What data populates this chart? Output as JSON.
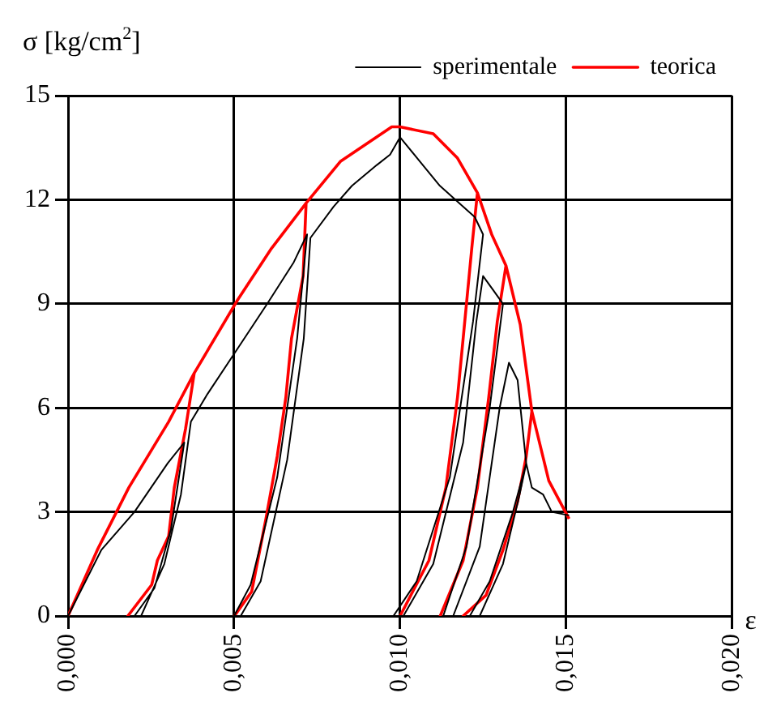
{
  "chart_data": {
    "type": "line",
    "ylabel": "σ [kg/cm$^{2}$]",
    "xlabel": "ε",
    "xlim": [
      0,
      0.02
    ],
    "xticks": [
      {
        "value": 0,
        "label": "0,000"
      },
      {
        "value": 0.005,
        "label": "0,005"
      },
      {
        "value": 0.01,
        "label": "0,010"
      },
      {
        "value": 0.015,
        "label": "0,015"
      },
      {
        "value": 0.02,
        "label": "0,020"
      }
    ],
    "ylim": [
      0,
      15
    ],
    "yticks": [
      0,
      3,
      6,
      9,
      12,
      15
    ],
    "grid": true,
    "legend": "top right",
    "marker": "none",
    "line_style": "solid",
    "series": [
      {
        "name": "sperimentale",
        "color": "#000000",
        "x": [
          0,
          0.001,
          0.002,
          0.003,
          0.0035,
          0.0031,
          0.0026,
          0.002,
          0.0022,
          0.0029,
          0.0034,
          0.0037,
          0.0042,
          0.0051,
          0.006,
          0.0068,
          0.0072,
          0.0069,
          0.0063,
          0.0055,
          0.005,
          0.0052,
          0.0058,
          0.0066,
          0.0071,
          0.0073,
          0.008,
          0.00855,
          0.0093,
          0.0097,
          0.01,
          0.0106,
          0.0112,
          0.01225,
          0.0125,
          0.0122,
          0.0115,
          0.0105,
          0.0098,
          0.0101,
          0.011,
          0.0119,
          0.0123,
          0.0125,
          0.0128,
          0.0131,
          0.0127,
          0.012,
          0.0113,
          0.0116,
          0.0124,
          0.013,
          0.01328,
          0.01354,
          0.0138,
          0.0134,
          0.0127,
          0.0121,
          0.0124,
          0.0131,
          0.0136,
          0.0138,
          0.01397,
          0.01431,
          0.01457,
          0.01509
        ],
        "values": [
          0,
          1.9,
          3.0,
          4.4,
          5.0,
          2.5,
          0.8,
          0,
          0,
          1.5,
          3.5,
          5.6,
          6.4,
          7.7,
          9.0,
          10.2,
          11.0,
          8.0,
          4.0,
          0.9,
          0,
          0,
          1.0,
          4.5,
          8.0,
          10.9,
          11.8,
          12.4,
          13.0,
          13.3,
          13.8,
          13.1,
          12.4,
          11.5,
          11.0,
          8.5,
          4.0,
          1.0,
          0,
          0,
          1.5,
          5.0,
          8.5,
          9.8,
          9.4,
          9.0,
          6.0,
          2.0,
          0,
          0,
          2.0,
          6.0,
          7.3,
          6.8,
          4.4,
          3.0,
          1.0,
          0,
          0,
          1.5,
          3.5,
          4.4,
          3.7,
          3.5,
          3.0,
          2.9
        ]
      },
      {
        "name": "teorica",
        "color": "#ff0000",
        "x": [
          0,
          0.00088,
          0.00183,
          0.00303,
          0.0038,
          0.00354,
          0.0032,
          0.00303,
          0.00269,
          0.00252,
          0.0018,
          0.00252,
          0.00269,
          0.00303,
          0.0032,
          0.00354,
          0.0038,
          0.0051,
          0.00613,
          0.00717,
          0.00708,
          0.00673,
          0.00656,
          0.0063,
          0.00596,
          0.00553,
          0.00501,
          0.00553,
          0.00596,
          0.0063,
          0.00656,
          0.00673,
          0.00708,
          0.00717,
          0.0082,
          0.00975,
          0.01,
          0.011,
          0.01173,
          0.01233,
          0.01216,
          0.0119,
          0.01173,
          0.01138,
          0.01087,
          0.01,
          0.01087,
          0.01138,
          0.01173,
          0.0119,
          0.01216,
          0.01233,
          0.01276,
          0.01319,
          0.01293,
          0.01267,
          0.01233,
          0.0119,
          0.01121,
          0.0119,
          0.01233,
          0.01267,
          0.01293,
          0.01319,
          0.01362,
          0.01397,
          0.0138,
          0.01354,
          0.0131,
          0.01259,
          0.0119,
          0.01259,
          0.0131,
          0.01354,
          0.0138,
          0.01397,
          0.01448,
          0.01509
        ],
        "values": [
          0,
          1.9,
          3.7,
          5.6,
          7.0,
          5.4,
          3.7,
          2.3,
          1.6,
          0.9,
          0,
          0.9,
          1.6,
          2.3,
          3.7,
          5.4,
          7.0,
          9.1,
          10.6,
          11.9,
          9.8,
          8.0,
          6.3,
          4.6,
          2.8,
          0.7,
          0,
          0.7,
          2.8,
          4.6,
          6.3,
          8.0,
          9.8,
          11.9,
          13.1,
          14.1,
          14.1,
          13.9,
          13.2,
          12.2,
          10.6,
          8.0,
          6.3,
          3.7,
          1.6,
          0,
          1.6,
          3.7,
          6.3,
          8.0,
          10.6,
          12.2,
          11.0,
          10.1,
          8.5,
          6.3,
          3.7,
          1.6,
          0,
          1.6,
          3.7,
          6.3,
          8.5,
          10.1,
          8.4,
          5.9,
          4.6,
          3.3,
          1.9,
          0.6,
          0,
          0.6,
          1.9,
          3.3,
          4.6,
          5.9,
          3.9,
          2.8
        ]
      }
    ]
  }
}
